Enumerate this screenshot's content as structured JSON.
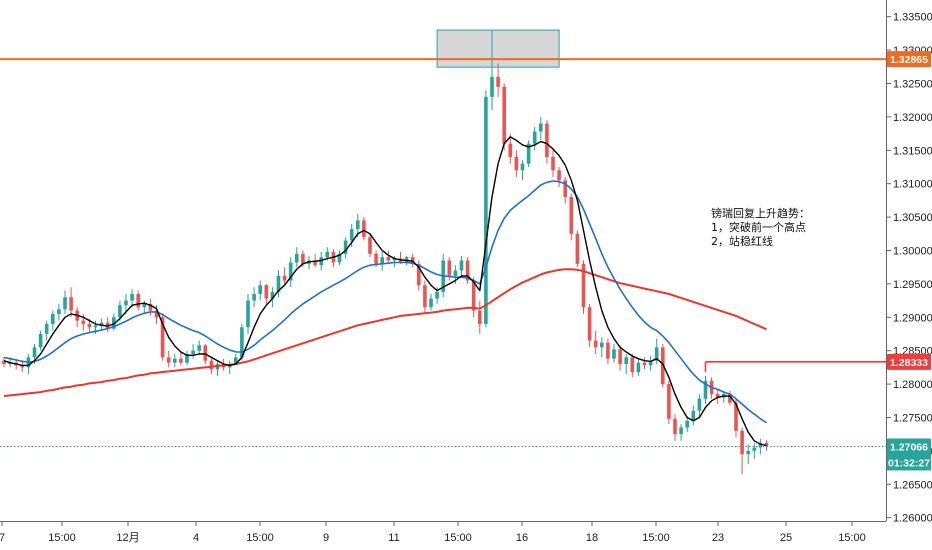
{
  "chart_data": {
    "type": "candlestick",
    "title": "",
    "xlabel": "",
    "ylabel": "",
    "ylim": [
      1.2595,
      1.3375
    ],
    "y_ticks": [
      {
        "value": 1.335,
        "label": "1.33500"
      },
      {
        "value": 1.33,
        "label": "1.33000"
      },
      {
        "value": 1.325,
        "label": "1.32500"
      },
      {
        "value": 1.32,
        "label": "1.32000"
      },
      {
        "value": 1.315,
        "label": "1.31500"
      },
      {
        "value": 1.31,
        "label": "1.31000"
      },
      {
        "value": 1.305,
        "label": "1.30500"
      },
      {
        "value": 1.3,
        "label": "1.30000"
      },
      {
        "value": 1.295,
        "label": "1.29500"
      },
      {
        "value": 1.29,
        "label": "1.29000"
      },
      {
        "value": 1.285,
        "label": "1.28500"
      },
      {
        "value": 1.28,
        "label": "1.28000"
      },
      {
        "value": 1.275,
        "label": "1.27500"
      },
      {
        "value": 1.27,
        "label": "1.27000"
      },
      {
        "value": 1.265,
        "label": "1.26500"
      },
      {
        "value": 1.26,
        "label": "1.26000"
      }
    ],
    "x_ticks": [
      "7",
      "15:00",
      "12月",
      "4",
      "15:00",
      "9",
      "11",
      "15:00",
      "16",
      "18",
      "15:00",
      "23",
      "25",
      "15:00"
    ],
    "grid": false,
    "colors": {
      "up": "#26a69a",
      "down": "#ef5350",
      "ma_fast": "#000000",
      "ma_mid": "#1e6fd0",
      "ma_slow": "#e8372d",
      "resistance_line": "#f06a20",
      "support_line": "#f03c3c",
      "price_line": "#26a69a",
      "highlight_fill": "#d6d6d6",
      "highlight_border": "#26a0b0"
    },
    "levels": [
      {
        "name": "resistance",
        "value": 1.32865,
        "label": "1.32865"
      },
      {
        "name": "support",
        "value": 1.28333,
        "label": "1.28333"
      },
      {
        "name": "last_price",
        "value": 1.27066,
        "label": "1.27066"
      }
    ],
    "countdown": "01:32:27",
    "annotation": [
      "镑瑞回复上升趋势：",
      "1，突破前一个高点",
      "2，站稳红线"
    ],
    "ohlc": [
      [
        1.2835,
        1.284,
        1.2825,
        1.283
      ],
      [
        1.283,
        1.284,
        1.2825,
        1.2832
      ],
      [
        1.2832,
        1.2838,
        1.2822,
        1.2828
      ],
      [
        1.2828,
        1.2836,
        1.2818,
        1.2825
      ],
      [
        1.2825,
        1.2845,
        1.2815,
        1.284
      ],
      [
        1.284,
        1.286,
        1.283,
        1.2855
      ],
      [
        1.2855,
        1.288,
        1.285,
        1.2875
      ],
      [
        1.2875,
        1.2895,
        1.2865,
        1.289
      ],
      [
        1.289,
        1.291,
        1.288,
        1.2905
      ],
      [
        1.2905,
        1.292,
        1.2895,
        1.2912
      ],
      [
        1.2912,
        1.294,
        1.2905,
        1.293
      ],
      [
        1.293,
        1.2945,
        1.29,
        1.291
      ],
      [
        1.291,
        1.2915,
        1.2885,
        1.2895
      ],
      [
        1.2895,
        1.2905,
        1.288,
        1.289
      ],
      [
        1.289,
        1.2898,
        1.2878,
        1.2885
      ],
      [
        1.2885,
        1.2895,
        1.2875,
        1.2888
      ],
      [
        1.2888,
        1.2898,
        1.288,
        1.2892
      ],
      [
        1.2892,
        1.29,
        1.2878,
        1.2883
      ],
      [
        1.2883,
        1.2905,
        1.288,
        1.29
      ],
      [
        1.29,
        1.2925,
        1.2895,
        1.2918
      ],
      [
        1.2918,
        1.2935,
        1.2905,
        1.2925
      ],
      [
        1.2925,
        1.2942,
        1.2915,
        1.2935
      ],
      [
        1.2935,
        1.294,
        1.291,
        1.2915
      ],
      [
        1.2915,
        1.2925,
        1.2905,
        1.292
      ],
      [
        1.292,
        1.2928,
        1.2902,
        1.291
      ],
      [
        1.291,
        1.2918,
        1.289,
        1.29
      ],
      [
        1.29,
        1.2905,
        1.2835,
        1.284
      ],
      [
        1.284,
        1.285,
        1.2825,
        1.2832
      ],
      [
        1.2832,
        1.2845,
        1.2825,
        1.2838
      ],
      [
        1.2838,
        1.2848,
        1.2828,
        1.2832
      ],
      [
        1.2832,
        1.285,
        1.2828,
        1.2845
      ],
      [
        1.2845,
        1.286,
        1.2838,
        1.285
      ],
      [
        1.285,
        1.2865,
        1.2845,
        1.2858
      ],
      [
        1.2858,
        1.286,
        1.283,
        1.2835
      ],
      [
        1.2835,
        1.284,
        1.2815,
        1.2822
      ],
      [
        1.2822,
        1.2835,
        1.2812,
        1.283
      ],
      [
        1.283,
        1.2838,
        1.282,
        1.2825
      ],
      [
        1.2825,
        1.2835,
        1.2815,
        1.283
      ],
      [
        1.283,
        1.2845,
        1.2828,
        1.284
      ],
      [
        1.284,
        1.289,
        1.2835,
        1.2885
      ],
      [
        1.2885,
        1.2935,
        1.2875,
        1.2925
      ],
      [
        1.2925,
        1.2945,
        1.2915,
        1.2935
      ],
      [
        1.2935,
        1.2955,
        1.2925,
        1.2948
      ],
      [
        1.2948,
        1.295,
        1.292,
        1.2928
      ],
      [
        1.2928,
        1.2945,
        1.2915,
        1.2938
      ],
      [
        1.2938,
        1.297,
        1.293,
        1.2962
      ],
      [
        1.2962,
        1.2975,
        1.295,
        1.2955
      ],
      [
        1.2955,
        1.299,
        1.2945,
        1.2982
      ],
      [
        1.2982,
        1.3005,
        1.2975,
        1.2995
      ],
      [
        1.2995,
        1.3,
        1.2975,
        1.298
      ],
      [
        1.298,
        1.2992,
        1.2972,
        1.2985
      ],
      [
        1.2985,
        1.2995,
        1.2975,
        1.2978
      ],
      [
        1.2978,
        1.2998,
        1.297,
        1.299
      ],
      [
        1.299,
        1.3005,
        1.2985,
        1.2998
      ],
      [
        1.2998,
        1.3002,
        1.2975,
        1.2982
      ],
      [
        1.2982,
        1.3,
        1.2978,
        1.2995
      ],
      [
        1.2995,
        1.302,
        1.2988,
        1.3015
      ],
      [
        1.3015,
        1.304,
        1.3005,
        1.3032
      ],
      [
        1.3032,
        1.3055,
        1.302,
        1.3045
      ],
      [
        1.3045,
        1.305,
        1.3015,
        1.302
      ],
      [
        1.302,
        1.3025,
        1.299,
        1.2995
      ],
      [
        1.2995,
        1.3,
        1.2975,
        1.298
      ],
      [
        1.298,
        1.2998,
        1.297,
        1.299
      ],
      [
        1.299,
        1.3,
        1.298,
        1.2985
      ],
      [
        1.2985,
        1.2992,
        1.2975,
        1.2988
      ],
      [
        1.2988,
        1.2998,
        1.298,
        1.2983
      ],
      [
        1.2983,
        1.2992,
        1.2978,
        1.299
      ],
      [
        1.299,
        1.2995,
        1.2975,
        1.298
      ],
      [
        1.298,
        1.2985,
        1.294,
        1.2948
      ],
      [
        1.2948,
        1.2955,
        1.2905,
        1.2915
      ],
      [
        1.2915,
        1.2935,
        1.291,
        1.2928
      ],
      [
        1.2928,
        1.2945,
        1.292,
        1.2938
      ],
      [
        1.2938,
        1.2995,
        1.293,
        1.2985
      ],
      [
        1.2985,
        1.299,
        1.2955,
        1.2962
      ],
      [
        1.2962,
        1.2978,
        1.295,
        1.297
      ],
      [
        1.297,
        1.2992,
        1.2962,
        1.2985
      ],
      [
        1.2985,
        1.299,
        1.295,
        1.2955
      ],
      [
        1.2955,
        1.296,
        1.29,
        1.291
      ],
      [
        1.291,
        1.2925,
        1.2875,
        1.289
      ],
      [
        1.289,
        1.324,
        1.2885,
        1.323
      ],
      [
        1.323,
        1.3285,
        1.321,
        1.326
      ],
      [
        1.326,
        1.328,
        1.323,
        1.3245
      ],
      [
        1.3245,
        1.325,
        1.315,
        1.316
      ],
      [
        1.316,
        1.3175,
        1.313,
        1.314
      ],
      [
        1.314,
        1.315,
        1.311,
        1.312
      ],
      [
        1.312,
        1.3135,
        1.3105,
        1.313
      ],
      [
        1.313,
        1.3165,
        1.3125,
        1.316
      ],
      [
        1.316,
        1.3185,
        1.315,
        1.3178
      ],
      [
        1.3178,
        1.32,
        1.3165,
        1.319
      ],
      [
        1.319,
        1.3195,
        1.313,
        1.314
      ],
      [
        1.314,
        1.315,
        1.311,
        1.312
      ],
      [
        1.312,
        1.3125,
        1.3095,
        1.3105
      ],
      [
        1.3105,
        1.311,
        1.307,
        1.308
      ],
      [
        1.308,
        1.3085,
        1.3015,
        1.3025
      ],
      [
        1.3025,
        1.303,
        1.2975,
        1.298
      ],
      [
        1.298,
        1.2985,
        1.2905,
        1.2915
      ],
      [
        1.2915,
        1.292,
        1.2855,
        1.2865
      ],
      [
        1.2865,
        1.288,
        1.2845,
        1.2855
      ],
      [
        1.2855,
        1.287,
        1.284,
        1.2862
      ],
      [
        1.2862,
        1.2868,
        1.283,
        1.2838
      ],
      [
        1.2838,
        1.286,
        1.2832,
        1.2852
      ],
      [
        1.2852,
        1.2858,
        1.282,
        1.283
      ],
      [
        1.283,
        1.2845,
        1.2815,
        1.284
      ],
      [
        1.284,
        1.2845,
        1.281,
        1.2818
      ],
      [
        1.2818,
        1.2838,
        1.2812,
        1.2832
      ],
      [
        1.2832,
        1.284,
        1.2822,
        1.2828
      ],
      [
        1.2828,
        1.2842,
        1.282,
        1.2835
      ],
      [
        1.2835,
        1.2868,
        1.283,
        1.2855
      ],
      [
        1.2855,
        1.286,
        1.2795,
        1.28
      ],
      [
        1.28,
        1.2805,
        1.274,
        1.2748
      ],
      [
        1.2748,
        1.2755,
        1.2715,
        1.2725
      ],
      [
        1.2725,
        1.274,
        1.2715,
        1.2735
      ],
      [
        1.2735,
        1.2752,
        1.2728,
        1.2745
      ],
      [
        1.2745,
        1.2768,
        1.2738,
        1.276
      ],
      [
        1.276,
        1.2785,
        1.2752,
        1.2778
      ],
      [
        1.2778,
        1.2812,
        1.277,
        1.2805
      ],
      [
        1.2805,
        1.281,
        1.2778,
        1.2785
      ],
      [
        1.2785,
        1.2792,
        1.277,
        1.278
      ],
      [
        1.278,
        1.279,
        1.2772,
        1.2785
      ],
      [
        1.2785,
        1.279,
        1.2768,
        1.2772
      ],
      [
        1.2772,
        1.2778,
        1.272,
        1.273
      ],
      [
        1.273,
        1.2735,
        1.2665,
        1.2695
      ],
      [
        1.2695,
        1.271,
        1.268,
        1.27
      ],
      [
        1.27,
        1.2712,
        1.2688,
        1.2705
      ],
      [
        1.2705,
        1.2718,
        1.2695,
        1.2712
      ],
      [
        1.2712,
        1.2716,
        1.27,
        1.2707
      ]
    ],
    "ma_fast": [
      1.2835,
      1.2832,
      1.283,
      1.2828,
      1.2828,
      1.2835,
      1.2845,
      1.286,
      1.2875,
      1.2888,
      1.29,
      1.2905,
      1.2903,
      1.29,
      1.2895,
      1.289,
      1.2888,
      1.2887,
      1.289,
      1.2898,
      1.2908,
      1.2918,
      1.292,
      1.2921,
      1.2918,
      1.2913,
      1.289,
      1.287,
      1.2857,
      1.2848,
      1.2843,
      1.2843,
      1.2845,
      1.2845,
      1.284,
      1.2835,
      1.283,
      1.2828,
      1.283,
      1.284,
      1.2862,
      1.2885,
      1.2905,
      1.2918,
      1.2928,
      1.294,
      1.2948,
      1.296,
      1.2972,
      1.298,
      1.2983,
      1.2984,
      1.2985,
      1.2988,
      1.299,
      1.2993,
      1.3,
      1.3012,
      1.3025,
      1.303,
      1.3025,
      1.3012,
      1.3,
      1.2993,
      1.2988,
      1.2986,
      1.2985,
      1.2984,
      1.2975,
      1.296,
      1.2948,
      1.294,
      1.2945,
      1.295,
      1.2955,
      1.2962,
      1.2962,
      1.2953,
      1.294,
      1.301,
      1.308,
      1.313,
      1.316,
      1.317,
      1.3165,
      1.3158,
      1.3155,
      1.3158,
      1.3163,
      1.316,
      1.3152,
      1.3142,
      1.3128,
      1.3105,
      1.3075,
      1.303,
      1.2985,
      1.2945,
      1.291,
      1.2885,
      1.2868,
      1.2855,
      1.2848,
      1.2842,
      1.2838,
      1.2835,
      1.2834,
      1.2838,
      1.283,
      1.281,
      1.2785,
      1.2765,
      1.275,
      1.2745,
      1.275,
      1.2765,
      1.2775,
      1.278,
      1.2782,
      1.2782,
      1.277,
      1.2748,
      1.2728,
      1.2715,
      1.271,
      1.2708
    ],
    "ma_mid": [
      1.284,
      1.2838,
      1.2836,
      1.2834,
      1.2833,
      1.2834,
      1.2837,
      1.2842,
      1.2848,
      1.2855,
      1.2862,
      1.2868,
      1.2872,
      1.2875,
      1.2877,
      1.2879,
      1.2881,
      1.2883,
      1.2886,
      1.289,
      1.2894,
      1.2899,
      1.2903,
      1.2906,
      1.2908,
      1.2908,
      1.2904,
      1.2898,
      1.2893,
      1.2888,
      1.2884,
      1.288,
      1.2877,
      1.2872,
      1.2866,
      1.286,
      1.2855,
      1.2851,
      1.2848,
      1.2848,
      1.2852,
      1.2858,
      1.2866,
      1.2873,
      1.288,
      1.2888,
      1.2896,
      1.2905,
      1.2913,
      1.292,
      1.2926,
      1.2932,
      1.2938,
      1.2943,
      1.2948,
      1.2953,
      1.2958,
      1.2964,
      1.297,
      1.2975,
      1.2978,
      1.2979,
      1.298,
      1.2981,
      1.2982,
      1.2982,
      1.2982,
      1.2981,
      1.2978,
      1.2973,
      1.2968,
      1.2964,
      1.2962,
      1.2961,
      1.296,
      1.296,
      1.2959,
      1.2955,
      1.295,
      1.2975,
      1.3005,
      1.303,
      1.3048,
      1.306,
      1.3068,
      1.3075,
      1.3082,
      1.309,
      1.3098,
      1.3102,
      1.3104,
      1.3103,
      1.31,
      1.3092,
      1.308,
      1.3062,
      1.304,
      1.3018,
      1.2995,
      1.2975,
      1.2958,
      1.2942,
      1.2928,
      1.2915,
      1.2903,
      1.2893,
      1.2885,
      1.288,
      1.2872,
      1.2862,
      1.285,
      1.2838,
      1.2826,
      1.2815,
      1.2806,
      1.28,
      1.2795,
      1.2792,
      1.2788,
      1.2785,
      1.2778,
      1.277,
      1.2762,
      1.2755,
      1.2748,
      1.2742
    ],
    "ma_slow": [
      1.2782,
      1.2783,
      1.2784,
      1.2785,
      1.2786,
      1.2787,
      1.2788,
      1.279,
      1.2791,
      1.2793,
      1.2795,
      1.2796,
      1.2798,
      1.2799,
      1.2801,
      1.2802,
      1.2803,
      1.2805,
      1.2806,
      1.2808,
      1.2809,
      1.2811,
      1.2813,
      1.2814,
      1.2816,
      1.2817,
      1.2818,
      1.2819,
      1.282,
      1.2821,
      1.2822,
      1.2823,
      1.2824,
      1.2825,
      1.2826,
      1.2827,
      1.2828,
      1.2829,
      1.283,
      1.2832,
      1.2834,
      1.2837,
      1.284,
      1.2843,
      1.2846,
      1.2849,
      1.2852,
      1.2855,
      1.2858,
      1.2861,
      1.2864,
      1.2867,
      1.287,
      1.2873,
      1.2876,
      1.2879,
      1.2882,
      1.2885,
      1.2888,
      1.289,
      1.2892,
      1.2894,
      1.2896,
      1.2898,
      1.29,
      1.2902,
      1.2903,
      1.2904,
      1.2905,
      1.2906,
      1.2907,
      1.2908,
      1.291,
      1.2911,
      1.2912,
      1.2913,
      1.2914,
      1.2914,
      1.2913,
      1.2918,
      1.2924,
      1.293,
      1.2936,
      1.2942,
      1.2947,
      1.2952,
      1.2956,
      1.296,
      1.2964,
      1.2967,
      1.2969,
      1.2971,
      1.2972,
      1.2972,
      1.2971,
      1.2969,
      1.2966,
      1.2963,
      1.296,
      1.2957,
      1.2954,
      1.2951,
      1.2949,
      1.2947,
      1.2945,
      1.2943,
      1.2941,
      1.2939,
      1.2937,
      1.2935,
      1.2932,
      1.2929,
      1.2926,
      1.2923,
      1.292,
      1.2917,
      1.2914,
      1.2911,
      1.2908,
      1.2905,
      1.2902,
      1.2898,
      1.2894,
      1.289,
      1.2886,
      1.2882
    ]
  }
}
